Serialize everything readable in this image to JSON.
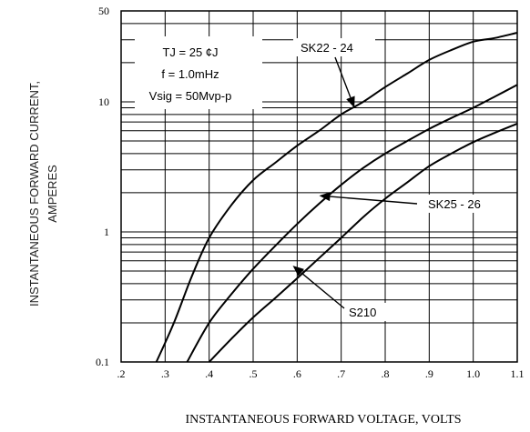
{
  "chart_data": {
    "type": "line",
    "ylabel_line1": "INSTANTANEOUS FORWARD CURRENT,",
    "ylabel_line2": "AMPERES",
    "xlabel": "INSTANTANEOUS FORWARD VOLTAGE, VOLTS",
    "xlim": [
      0.2,
      1.1
    ],
    "ylim": [
      0.1,
      50
    ],
    "yscale": "log",
    "grid": true,
    "x_ticks": [
      {
        "value": 0.2,
        "label": ".2"
      },
      {
        "value": 0.3,
        "label": ".3"
      },
      {
        "value": 0.4,
        "label": ".4"
      },
      {
        "value": 0.5,
        "label": ".5"
      },
      {
        "value": 0.6,
        "label": ".6"
      },
      {
        "value": 0.7,
        "label": ".7"
      },
      {
        "value": 0.8,
        "label": ".8"
      },
      {
        "value": 0.9,
        "label": ".9"
      },
      {
        "value": 1.0,
        "label": "1.0"
      },
      {
        "value": 1.1,
        "label": "1.1"
      }
    ],
    "y_ticks": [
      {
        "value": 0.1,
        "label": "0.1"
      },
      {
        "value": 1,
        "label": "1"
      },
      {
        "value": 10,
        "label": "10"
      },
      {
        "value": 50,
        "label": "50"
      }
    ],
    "conditions": [
      "TJ = 25  ¢J",
      "f = 1.0mHz",
      "Vsig = 50Mvp-p"
    ],
    "series": [
      {
        "name": "SK22 - 24",
        "points": [
          [
            0.28,
            0.1
          ],
          [
            0.32,
            0.2
          ],
          [
            0.36,
            0.45
          ],
          [
            0.4,
            0.9
          ],
          [
            0.45,
            1.6
          ],
          [
            0.5,
            2.5
          ],
          [
            0.55,
            3.4
          ],
          [
            0.6,
            4.6
          ],
          [
            0.65,
            6.0
          ],
          [
            0.7,
            8.0
          ],
          [
            0.75,
            10.0
          ],
          [
            0.8,
            13.0
          ],
          [
            0.85,
            16.5
          ],
          [
            0.9,
            21.0
          ],
          [
            0.95,
            25.0
          ],
          [
            1.0,
            29.0
          ],
          [
            1.05,
            31.0
          ],
          [
            1.1,
            34.0
          ]
        ]
      },
      {
        "name": "SK25 - 26",
        "points": [
          [
            0.35,
            0.1
          ],
          [
            0.4,
            0.2
          ],
          [
            0.45,
            0.33
          ],
          [
            0.5,
            0.52
          ],
          [
            0.55,
            0.78
          ],
          [
            0.6,
            1.15
          ],
          [
            0.65,
            1.65
          ],
          [
            0.7,
            2.3
          ],
          [
            0.75,
            3.1
          ],
          [
            0.8,
            4.0
          ],
          [
            0.85,
            5.0
          ],
          [
            0.9,
            6.2
          ],
          [
            0.95,
            7.5
          ],
          [
            1.0,
            9.0
          ],
          [
            1.05,
            11.0
          ],
          [
            1.1,
            13.5
          ]
        ]
      },
      {
        "name": "S210",
        "points": [
          [
            0.4,
            0.1
          ],
          [
            0.45,
            0.15
          ],
          [
            0.5,
            0.22
          ],
          [
            0.55,
            0.31
          ],
          [
            0.6,
            0.44
          ],
          [
            0.65,
            0.63
          ],
          [
            0.7,
            0.9
          ],
          [
            0.75,
            1.3
          ],
          [
            0.8,
            1.8
          ],
          [
            0.85,
            2.4
          ],
          [
            0.9,
            3.2
          ],
          [
            0.95,
            4.0
          ],
          [
            1.0,
            4.9
          ],
          [
            1.05,
            5.8
          ],
          [
            1.1,
            6.8
          ]
        ]
      }
    ],
    "annotations": [
      {
        "text": "SK22 - 24",
        "target": [
          0.73,
          9.0
        ]
      },
      {
        "text": "SK25 - 26",
        "target": [
          0.65,
          1.9
        ]
      },
      {
        "text": "S210",
        "target": [
          0.59,
          0.55
        ]
      }
    ]
  }
}
